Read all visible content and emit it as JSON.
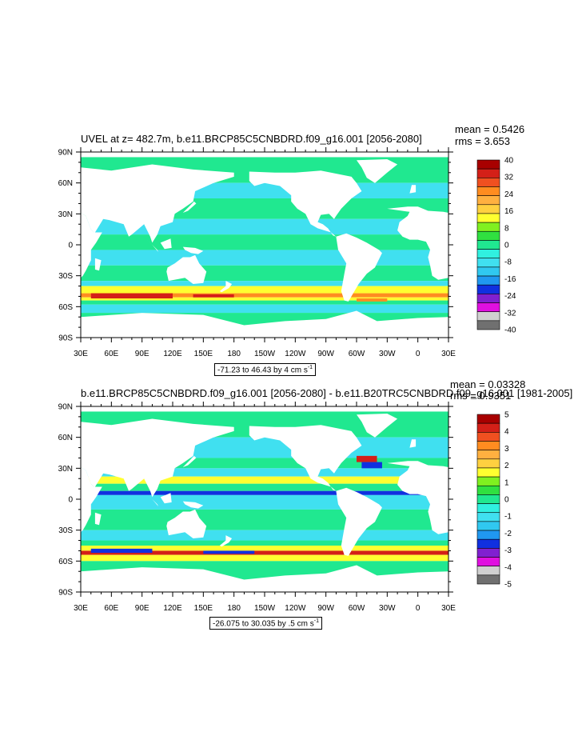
{
  "chart_data": [
    {
      "type": "heatmap",
      "title": "UVEL at z= 482.7m, b.e11.BRCP85C5CNBDRD.f09_g16.001 [2056-2080]",
      "stats": {
        "mean": "mean = 0.5426",
        "rms": "rms = 3.653"
      },
      "contour_info": {
        "text": "-71.23 to 46.43 by 4 cm s",
        "sup": "-1"
      },
      "x_ticks": [
        "30E",
        "60E",
        "90E",
        "120E",
        "150E",
        "180",
        "150W",
        "120W",
        "90W",
        "60W",
        "30W",
        "0",
        "30E"
      ],
      "y_ticks": [
        "90N",
        "60N",
        "30N",
        "0",
        "30S",
        "60S",
        "90S"
      ],
      "xlim": [
        30,
        390
      ],
      "ylim": [
        -90,
        90
      ],
      "colorbar": {
        "labels": [
          "40",
          "32",
          "24",
          "16",
          "8",
          "0",
          "-8",
          "-16",
          "-24",
          "-32",
          "-40"
        ],
        "colors": [
          "#a80000",
          "#d42018",
          "#f05020",
          "#ff8c20",
          "#ffb040",
          "#ffd040",
          "#ffff30",
          "#80f020",
          "#30e040",
          "#20e890",
          "#30f0e0",
          "#40e0f0",
          "#30c8f0",
          "#2098f0",
          "#1030e0",
          "#8020d0",
          "#e010e0",
          "#d0d0d0",
          "#707070"
        ]
      }
    },
    {
      "type": "heatmap",
      "title": "b.e11.BRCP85C5CNBDRD.f09_g16.001 [2056-2080] - b.e11.B20TRC5CNBDRD.f09_g16.001 [1981-2005]",
      "stats": {
        "mean": "mean = 0.03328",
        "rms": "rms = 0.9351"
      },
      "contour_info": {
        "text": "-26.075 to 30.035 by .5 cm s",
        "sup": "-1"
      },
      "x_ticks": [
        "30E",
        "60E",
        "90E",
        "120E",
        "150E",
        "180",
        "150W",
        "120W",
        "90W",
        "60W",
        "30W",
        "0",
        "30E"
      ],
      "y_ticks": [
        "90N",
        "60N",
        "30N",
        "0",
        "30S",
        "60S",
        "90S"
      ],
      "xlim": [
        30,
        390
      ],
      "ylim": [
        -90,
        90
      ],
      "colorbar": {
        "labels": [
          "5",
          "4",
          "3",
          "2",
          "1",
          "0",
          "-1",
          "-2",
          "-3",
          "-4",
          "-5"
        ],
        "colors": [
          "#a80000",
          "#d42018",
          "#f05020",
          "#ff8c20",
          "#ffb040",
          "#ffd040",
          "#ffff30",
          "#80f020",
          "#30e040",
          "#20e890",
          "#30f0e0",
          "#40e0f0",
          "#30c8f0",
          "#2098f0",
          "#1030e0",
          "#8020d0",
          "#e010e0",
          "#d0d0d0",
          "#707070"
        ]
      }
    }
  ],
  "field_colors": {
    "ocean_base": "#20e890",
    "band_cyan": "#40e0f0",
    "band_yellow": "#ffff30",
    "band_orange": "#ff8c20",
    "band_red": "#d42018",
    "band_blue": "#1030e0"
  }
}
